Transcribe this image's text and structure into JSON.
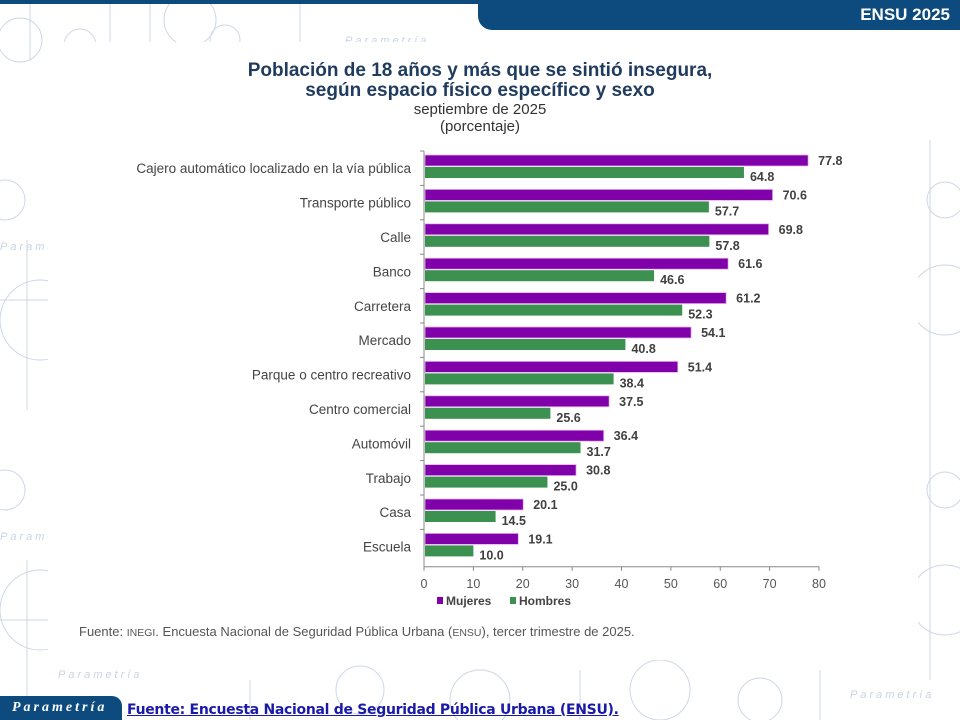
{
  "header": {
    "badge": "ENSU 2025"
  },
  "footer": {
    "logo_text": "Parametría",
    "link_text": "Fuente: Encuesta Nacional de Seguridad Pública Urbana (ENSU)."
  },
  "source_note": {
    "prefix": "Fuente: ",
    "org": "INEGI",
    "middle": ". Encuesta Nacional de Seguridad Pública Urbana (",
    "abbr": "ENSU",
    "suffix": "), tercer trimestre de 2025."
  },
  "watermark_text": "Parametría",
  "chart_data": {
    "type": "bar",
    "orientation": "horizontal",
    "title_line1": "Población de 18 años y más que se sintió insegura,",
    "title_line2": "según espacio físico específico y sexo",
    "subtitle": "septiembre de 2025",
    "unit_label": "(porcentaje)",
    "xlabel": "",
    "ylabel": "",
    "xlim": [
      0,
      80
    ],
    "x_ticks": [
      0,
      10,
      20,
      30,
      40,
      50,
      60,
      70,
      80
    ],
    "grid": false,
    "legend_position": "bottom",
    "categories": [
      "Cajero automático localizado en la vía pública",
      "Transporte público",
      "Calle",
      "Banco",
      "Carretera",
      "Mercado",
      "Parque o centro recreativo",
      "Centro comercial",
      "Automóvil",
      "Trabajo",
      "Casa",
      "Escuela"
    ],
    "series": [
      {
        "name": "Mujeres",
        "color": "#8000aa",
        "values": [
          77.8,
          70.6,
          69.8,
          61.6,
          61.2,
          54.1,
          51.4,
          37.5,
          36.4,
          30.8,
          20.1,
          19.1
        ]
      },
      {
        "name": "Hombres",
        "color": "#3d9150",
        "values": [
          64.8,
          57.7,
          57.8,
          46.6,
          52.3,
          40.8,
          38.4,
          25.6,
          31.7,
          25.0,
          14.5,
          10.0
        ]
      }
    ]
  }
}
